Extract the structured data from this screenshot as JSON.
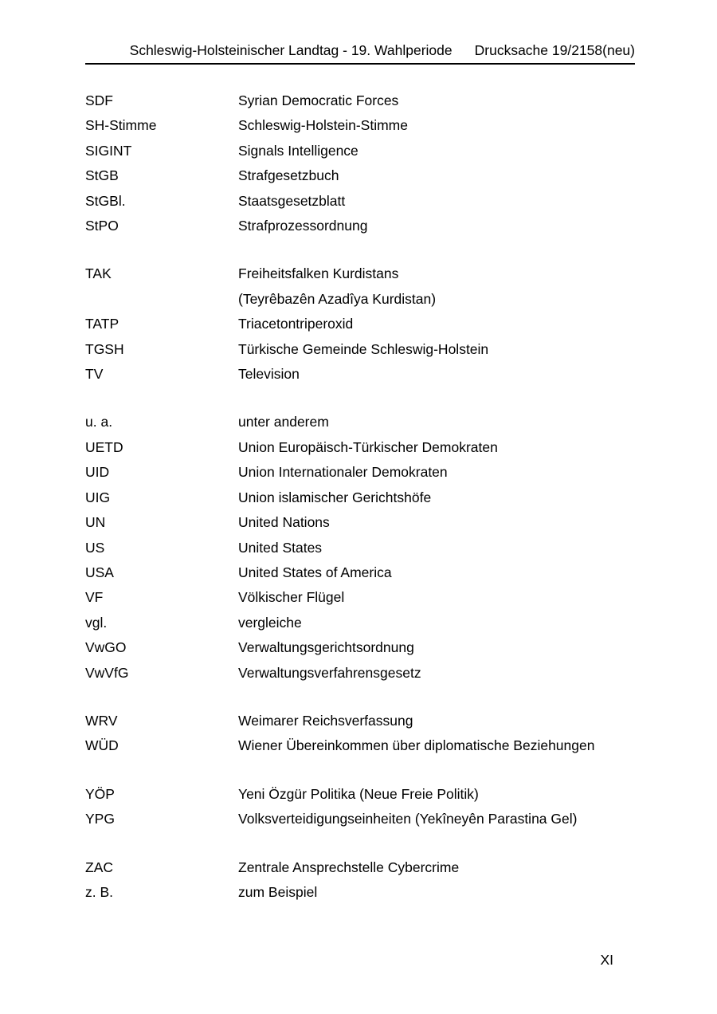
{
  "page": {
    "header": {
      "left": "Schleswig-Holsteinischer Landtag - 19. Wahlperiode",
      "right": "Drucksache 19/2158(neu)"
    },
    "page_number": "XI"
  },
  "colors": {
    "text": "#000000",
    "background": "#ffffff",
    "rule": "#000000"
  },
  "abbreviations": {
    "sections": [
      {
        "entries": [
          {
            "abbr": "SDF",
            "definition": "Syrian Democratic Forces"
          },
          {
            "abbr": "SH-Stimme",
            "definition": "Schleswig-Holstein-Stimme"
          },
          {
            "abbr": "SIGINT",
            "definition": "Signals Intelligence"
          },
          {
            "abbr": "StGB",
            "definition": "Strafgesetzbuch"
          },
          {
            "abbr": "StGBl.",
            "definition": "Staatsgesetzblatt"
          },
          {
            "abbr": "StPO",
            "definition": "Strafprozessordnung"
          }
        ]
      },
      {
        "entries": [
          {
            "abbr": "TAK",
            "definition": "Freiheitsfalken Kurdistans"
          },
          {
            "abbr": "",
            "definition": "(Teyrêbazên Azadîya Kurdistan)"
          },
          {
            "abbr": "TATP",
            "definition": "Triacetontriperoxid"
          },
          {
            "abbr": "TGSH",
            "definition": "Türkische Gemeinde Schleswig-Holstein"
          },
          {
            "abbr": "TV",
            "definition": "Television"
          }
        ]
      },
      {
        "entries": [
          {
            "abbr": "u. a.",
            "definition": "unter anderem"
          },
          {
            "abbr": "UETD",
            "definition": "Union Europäisch-Türkischer Demokraten"
          },
          {
            "abbr": "UID",
            "definition": "Union Internationaler Demokraten"
          },
          {
            "abbr": "UIG",
            "definition": "Union islamischer Gerichtshöfe"
          },
          {
            "abbr": "UN",
            "definition": "United Nations"
          },
          {
            "abbr": "US",
            "definition": "United States"
          },
          {
            "abbr": "USA",
            "definition": "United States of America"
          },
          {
            "abbr": "VF",
            "definition": "Völkischer Flügel"
          },
          {
            "abbr": "vgl.",
            "definition": "vergleiche"
          },
          {
            "abbr": "VwGO",
            "definition": "Verwaltungsgerichtsordnung"
          },
          {
            "abbr": "VwVfG",
            "definition": "Verwaltungsverfahrensgesetz"
          }
        ]
      },
      {
        "entries": [
          {
            "abbr": "WRV",
            "definition": "Weimarer Reichsverfassung"
          },
          {
            "abbr": "WÜD",
            "definition": "Wiener Übereinkommen über diplomatische Beziehungen"
          }
        ]
      },
      {
        "entries": [
          {
            "abbr": "YÖP",
            "definition": "Yeni Özgür Politika (Neue Freie Politik)"
          },
          {
            "abbr": "YPG",
            "definition": "Volksverteidigungseinheiten (Yekîneyên Parastina Gel)"
          }
        ]
      },
      {
        "entries": [
          {
            "abbr": "ZAC",
            "definition": "Zentrale Ansprechstelle Cybercrime"
          },
          {
            "abbr": "z. B.",
            "definition": "zum Beispiel"
          }
        ]
      }
    ]
  }
}
